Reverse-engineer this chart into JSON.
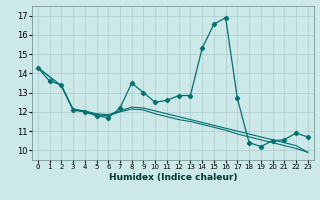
{
  "xlabel": "Humidex (Indice chaleur)",
  "bg_color": "#cde8e8",
  "grid_color": "#aacccc",
  "line_color": "#007070",
  "xlim": [
    -0.5,
    23.5
  ],
  "ylim": [
    9.5,
    17.5
  ],
  "xticks": [
    0,
    1,
    2,
    3,
    4,
    5,
    6,
    7,
    8,
    9,
    10,
    11,
    12,
    13,
    14,
    15,
    16,
    17,
    18,
    19,
    20,
    21,
    22,
    23
  ],
  "yticks": [
    10,
    11,
    12,
    13,
    14,
    15,
    16,
    17
  ],
  "line1_x": [
    0,
    1,
    2,
    3,
    4,
    5,
    6,
    7,
    8,
    9,
    10,
    11,
    12,
    13,
    14,
    15,
    16,
    17,
    18,
    19,
    20,
    21,
    22,
    23
  ],
  "line1_y": [
    14.3,
    13.6,
    13.4,
    12.1,
    12.0,
    11.8,
    11.7,
    12.2,
    13.5,
    13.0,
    12.5,
    12.6,
    12.85,
    12.85,
    15.3,
    16.55,
    16.9,
    12.7,
    10.4,
    10.2,
    10.5,
    10.55,
    10.9,
    10.7
  ],
  "line2_x": [
    0,
    2,
    3,
    4,
    5,
    6,
    7,
    8,
    9,
    10,
    11,
    12,
    13,
    14,
    15,
    16,
    17,
    18,
    19,
    20,
    21,
    22,
    23
  ],
  "line2_y": [
    14.3,
    13.35,
    12.1,
    12.0,
    11.85,
    11.8,
    12.0,
    12.15,
    12.1,
    11.9,
    11.75,
    11.6,
    11.5,
    11.35,
    11.2,
    11.05,
    10.85,
    10.7,
    10.55,
    10.4,
    10.25,
    10.1,
    9.9
  ],
  "line3_x": [
    0,
    2,
    3,
    4,
    5,
    6,
    7,
    8,
    9,
    10,
    11,
    12,
    13,
    14,
    15,
    16,
    17,
    18,
    19,
    20,
    21,
    22,
    23
  ],
  "line3_y": [
    14.3,
    13.35,
    12.15,
    12.05,
    11.9,
    11.85,
    12.05,
    12.25,
    12.2,
    12.05,
    11.9,
    11.75,
    11.6,
    11.45,
    11.3,
    11.15,
    11.0,
    10.85,
    10.7,
    10.55,
    10.4,
    10.25,
    9.9
  ]
}
